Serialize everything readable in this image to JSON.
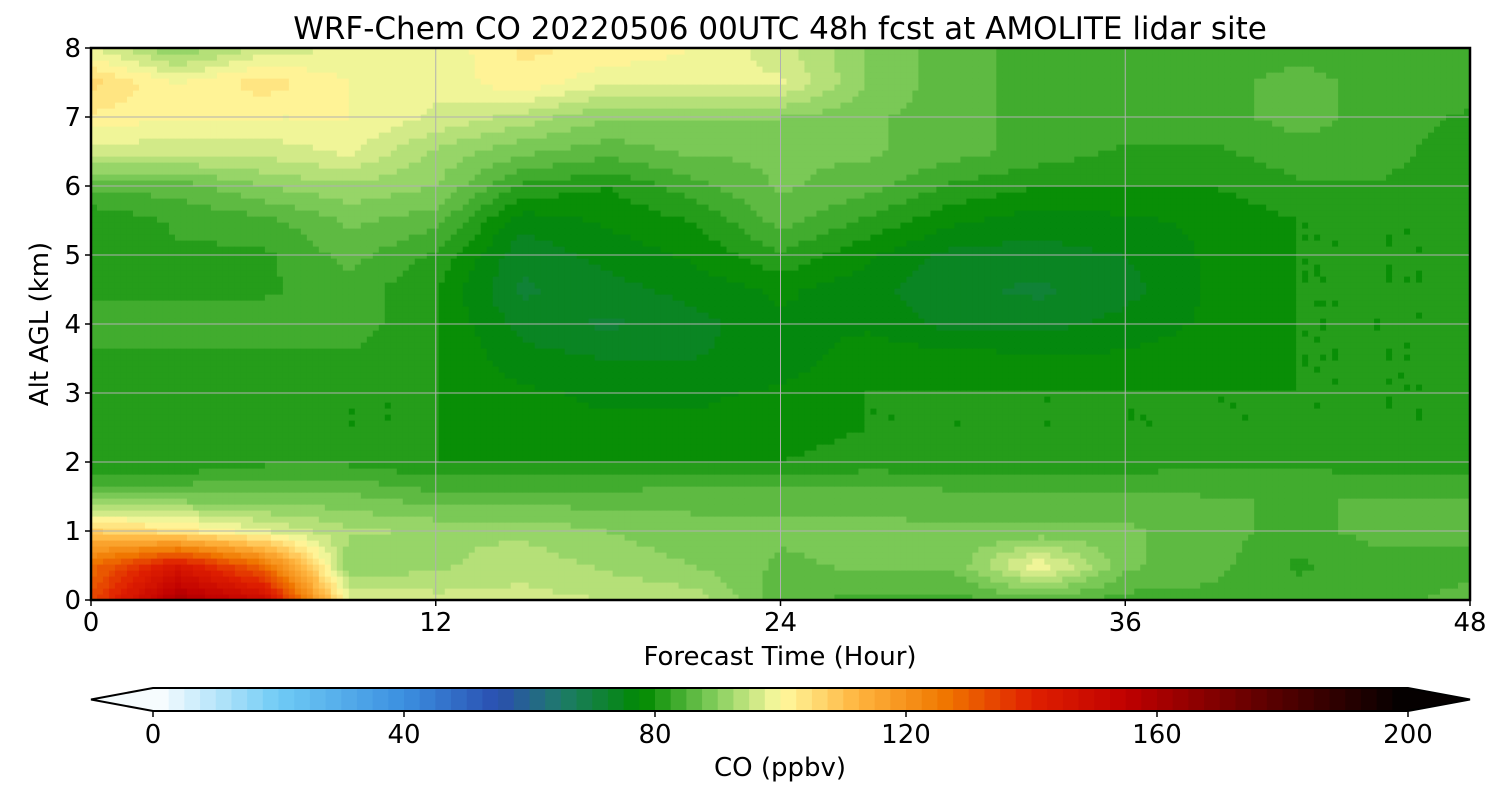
{
  "chart_data": {
    "type": "heatmap",
    "title": "WRF-Chem CO  20220506 00UTC 48h fcst at AMOLITE lidar site",
    "xlabel": "Forecast Time (Hour)",
    "ylabel": "Alt AGL (km)",
    "xlim": [
      0,
      48
    ],
    "ylim": [
      0,
      8
    ],
    "x_ticks": [
      "0",
      "12",
      "24",
      "36",
      "48"
    ],
    "y_ticks": [
      "0",
      "1",
      "2",
      "3",
      "4",
      "5",
      "6",
      "7",
      "8"
    ],
    "grid": true,
    "x": [
      0,
      3,
      6,
      9,
      12,
      15,
      18,
      21,
      24,
      27,
      30,
      33,
      36,
      39,
      42,
      45,
      48
    ],
    "y": [
      0,
      0.5,
      1,
      1.5,
      2,
      2.5,
      3,
      3.5,
      4,
      4.5,
      5,
      5.5,
      6,
      6.5,
      7,
      7.5,
      8
    ],
    "z": [
      [
        133,
        160,
        150,
        98,
        96,
        96,
        95,
        94,
        86,
        84,
        84,
        86,
        84,
        84,
        84,
        84,
        86
      ],
      [
        128,
        145,
        128,
        90,
        92,
        94,
        92,
        90,
        87,
        88,
        88,
        100,
        88,
        86,
        82,
        84,
        84
      ],
      [
        108,
        104,
        98,
        93,
        92,
        92,
        90,
        88,
        88,
        88,
        88,
        88,
        88,
        86,
        84,
        86,
        86
      ],
      [
        88,
        88,
        88,
        88,
        86,
        86,
        86,
        87,
        87,
        87,
        86,
        86,
        86,
        85,
        85,
        85,
        85
      ],
      [
        80,
        80,
        82,
        82,
        80,
        80,
        80,
        80,
        80,
        81,
        81,
        81,
        81,
        82,
        82,
        81,
        81
      ],
      [
        82,
        82,
        82,
        80,
        80,
        78,
        78,
        78,
        79,
        80,
        80,
        80,
        80,
        80,
        80,
        80,
        80
      ],
      [
        80,
        80,
        80,
        80,
        80,
        78,
        77,
        77,
        78,
        80,
        80,
        80,
        80,
        80,
        80,
        80,
        80
      ],
      [
        82,
        82,
        82,
        82,
        80,
        76,
        75,
        75,
        76,
        79,
        79,
        78,
        78,
        79,
        80,
        80,
        80
      ],
      [
        84,
        84,
        84,
        84,
        80,
        74,
        72,
        74,
        77,
        77,
        74,
        74,
        76,
        78,
        80,
        80,
        80
      ],
      [
        82,
        82,
        82,
        84,
        80,
        72,
        74,
        76,
        78,
        76,
        73,
        72,
        74,
        78,
        80,
        80,
        80
      ],
      [
        80,
        82,
        82,
        86,
        82,
        73,
        76,
        78,
        82,
        78,
        74,
        74,
        75,
        78,
        80,
        80,
        80
      ],
      [
        80,
        83,
        84,
        88,
        86,
        76,
        78,
        80,
        86,
        82,
        78,
        76,
        77,
        78,
        80,
        80,
        80
      ],
      [
        86,
        86,
        90,
        92,
        90,
        82,
        80,
        84,
        88,
        86,
        82,
        80,
        80,
        80,
        82,
        82,
        80
      ],
      [
        96,
        96,
        96,
        98,
        92,
        88,
        86,
        88,
        88,
        88,
        86,
        84,
        82,
        82,
        84,
        84,
        80
      ],
      [
        102,
        100,
        100,
        100,
        97,
        94,
        90,
        90,
        90,
        88,
        86,
        84,
        84,
        84,
        86,
        84,
        82
      ],
      [
        106,
        100,
        104,
        100,
        98,
        102,
        98,
        98,
        98,
        90,
        86,
        84,
        84,
        84,
        86,
        84,
        84
      ],
      [
        98,
        90,
        96,
        98,
        98,
        103,
        102,
        100,
        96,
        90,
        86,
        84,
        84,
        84,
        84,
        84,
        84
      ]
    ],
    "colorbar": {
      "label": "CO  (ppbv)",
      "min": 0,
      "max": 200,
      "step": 2.5,
      "ticks": [
        "0",
        "40",
        "80",
        "120",
        "160",
        "200"
      ],
      "extend": "both",
      "colors": [
        {
          "v": 0,
          "c": "#ffffff"
        },
        {
          "v": 20,
          "c": "#6fcbf5"
        },
        {
          "v": 40,
          "c": "#3b8fe0"
        },
        {
          "v": 55,
          "c": "#2a4fb0"
        },
        {
          "v": 65,
          "c": "#1e7a6a"
        },
        {
          "v": 78,
          "c": "#008a00"
        },
        {
          "v": 90,
          "c": "#88d060"
        },
        {
          "v": 100,
          "c": "#fffaa0"
        },
        {
          "v": 112,
          "c": "#ffb640"
        },
        {
          "v": 126,
          "c": "#f07800"
        },
        {
          "v": 140,
          "c": "#e02000"
        },
        {
          "v": 155,
          "c": "#c00000"
        },
        {
          "v": 178,
          "c": "#5a0000"
        },
        {
          "v": 200,
          "c": "#000000"
        }
      ]
    }
  }
}
